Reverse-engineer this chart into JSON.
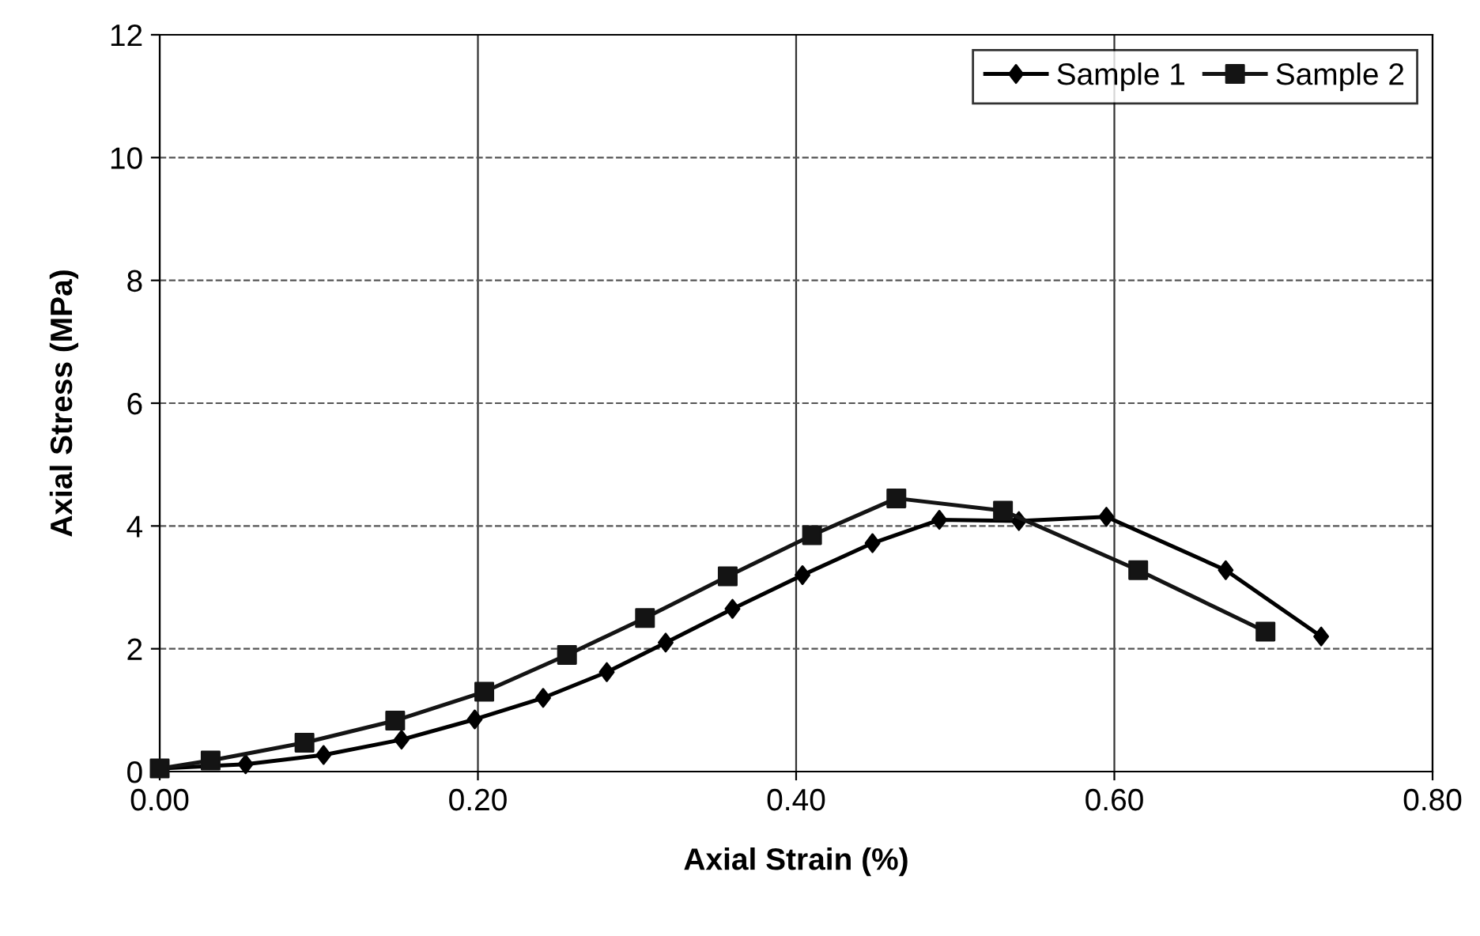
{
  "chart_data": {
    "type": "line",
    "xlabel": "Axial Strain (%)",
    "ylabel": "Axial Stress (MPa)",
    "xlim": [
      0,
      0.8
    ],
    "xticks": [
      {
        "value": 0,
        "label": "0.00"
      },
      {
        "value": 0.2,
        "label": "0.20"
      },
      {
        "value": 0.4,
        "label": "0.40"
      },
      {
        "value": 0.6,
        "label": "0.60"
      },
      {
        "value": 0.8,
        "label": "0.80"
      }
    ],
    "ylim": [
      0,
      12
    ],
    "yticks": [
      0,
      2,
      4,
      6,
      8,
      10,
      12
    ],
    "grid": true,
    "legend": "top right",
    "series": [
      {
        "name": "Sample 1",
        "color": "#000000",
        "marker": "diamond",
        "x": [
          0,
          0.054,
          0.103,
          0.152,
          0.198,
          0.241,
          0.281,
          0.318,
          0.36,
          0.404,
          0.448,
          0.49,
          0.54,
          0.595,
          0.67,
          0.73
        ],
        "values": [
          0.05,
          0.12,
          0.27,
          0.52,
          0.85,
          1.2,
          1.62,
          2.1,
          2.65,
          3.2,
          3.72,
          4.1,
          4.08,
          4.15,
          3.28,
          2.2
        ]
      },
      {
        "name": "Sample 2",
        "color": "#141414",
        "marker": "square",
        "x": [
          0,
          0.032,
          0.091,
          0.148,
          0.204,
          0.256,
          0.305,
          0.357,
          0.41,
          0.463,
          0.53,
          0.615,
          0.695
        ],
        "values": [
          0.05,
          0.18,
          0.47,
          0.83,
          1.3,
          1.9,
          2.5,
          3.18,
          3.85,
          4.45,
          4.25,
          3.28,
          2.28
        ]
      }
    ]
  }
}
